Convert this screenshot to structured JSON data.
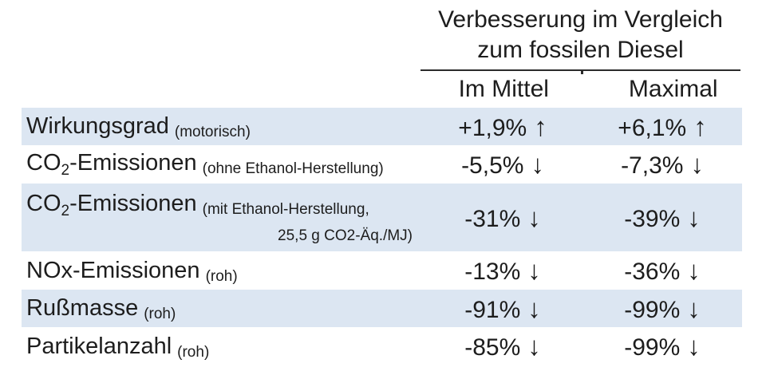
{
  "header": {
    "title_line1": "Verbesserung im Vergleich",
    "title_line2": "zum fossilen Diesel",
    "col_mittel": "Im Mittel",
    "col_maximal": "Maximal"
  },
  "rows": [
    {
      "label_pre": "Wirkungsgrad",
      "label_sub": "",
      "label_post": "",
      "note": "(motorisch)",
      "note_line2": "",
      "mittel_value": "+1,9%",
      "mittel_arrow": "↑",
      "maximal_value": "+6,1%",
      "maximal_arrow": "↑"
    },
    {
      "label_pre": "CO",
      "label_sub": "2",
      "label_post": "-Emissionen",
      "note": "(ohne Ethanol-Herstellung)",
      "note_line2": "",
      "mittel_value": "-5,5%",
      "mittel_arrow": "↓",
      "maximal_value": "-7,3%",
      "maximal_arrow": "↓"
    },
    {
      "label_pre": "CO",
      "label_sub": "2",
      "label_post": "-Emissionen",
      "note": "(mit Ethanol-Herstellung,",
      "note_line2": "25,5 g CO2-Äq./MJ)",
      "mittel_value": "-31%",
      "mittel_arrow": "↓",
      "maximal_value": "-39%",
      "maximal_arrow": "↓"
    },
    {
      "label_pre": "NOx-Emissionen",
      "label_sub": "",
      "label_post": "",
      "note": "(roh)",
      "note_line2": "",
      "mittel_value": "-13%",
      "mittel_arrow": "↓",
      "maximal_value": "-36%",
      "maximal_arrow": "↓"
    },
    {
      "label_pre": "Rußmasse",
      "label_sub": "",
      "label_post": "",
      "note": "(roh)",
      "note_line2": "",
      "mittel_value": "-91%",
      "mittel_arrow": "↓",
      "maximal_value": "-99%",
      "maximal_arrow": "↓"
    },
    {
      "label_pre": "Partikelanzahl",
      "label_sub": "",
      "label_post": "",
      "note": "(roh)",
      "note_line2": "",
      "mittel_value": "-85%",
      "mittel_arrow": "↓",
      "maximal_value": "-99%",
      "maximal_arrow": "↓"
    }
  ],
  "colors": {
    "row_shade": "#dce6f2",
    "text": "#1d1d1d",
    "rule": "#2b2b2b"
  },
  "chart_data": {
    "type": "table",
    "title": "Verbesserung im Vergleich zum fossilen Diesel",
    "columns": [
      "",
      "Im Mittel",
      "Maximal"
    ],
    "rows": [
      [
        "Wirkungsgrad (motorisch)",
        "+1,9% ↑",
        "+6,1% ↑"
      ],
      [
        "CO₂-Emissionen (ohne Ethanol-Herstellung)",
        "-5,5% ↓",
        "-7,3% ↓"
      ],
      [
        "CO₂-Emissionen (mit Ethanol-Herstellung, 25,5 g CO2-Äq./MJ)",
        "-31% ↓",
        "-39% ↓"
      ],
      [
        "NOx-Emissionen (roh)",
        "-13% ↓",
        "-36% ↓"
      ],
      [
        "Rußmasse (roh)",
        "-91% ↓",
        "-99% ↓"
      ],
      [
        "Partikelanzahl (roh)",
        "-85% ↓",
        "-99% ↓"
      ]
    ],
    "layout": {
      "shaded_row_indices": [
        0,
        2,
        4
      ],
      "grid": "header rule only",
      "legend": "none"
    }
  }
}
